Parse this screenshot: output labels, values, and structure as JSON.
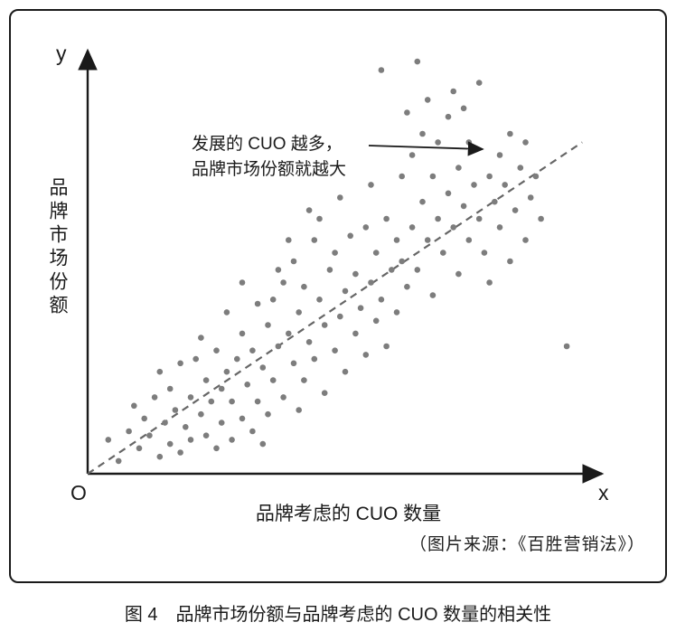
{
  "figure": {
    "y_axis_letter": "y",
    "x_axis_letter": "x",
    "origin_label": "O",
    "annotation_line1": "发展的 CUO 越多，",
    "annotation_line2": "品牌市场份额就越大",
    "source": "（图片来源：《百胜营销法》）",
    "caption": "图 4　品牌市场份额与品牌考虑的 CUO 数量的相关性",
    "dot_color": "#7d7d7d",
    "trend_color": "#666666",
    "axis_color": "#1a1a1a"
  },
  "chart_data": {
    "type": "scatter",
    "title": "",
    "xlabel": "品牌考虑的 CUO 数量",
    "ylabel": "品牌市场份额",
    "x_range": [
      0,
      100
    ],
    "y_range": [
      0,
      100
    ],
    "grid": false,
    "legend": "none",
    "annotation": "发展的 CUO 越多，品牌市场份额就越大",
    "trend_line": {
      "style": "dashed",
      "from": [
        0,
        0
      ],
      "to": [
        96,
        78
      ]
    },
    "points": [
      [
        4,
        8
      ],
      [
        6,
        3
      ],
      [
        8,
        10
      ],
      [
        9,
        16
      ],
      [
        10,
        6
      ],
      [
        11,
        13
      ],
      [
        12,
        9
      ],
      [
        13,
        18
      ],
      [
        14,
        4
      ],
      [
        14,
        24
      ],
      [
        15,
        12
      ],
      [
        16,
        20
      ],
      [
        16,
        7
      ],
      [
        17,
        15
      ],
      [
        18,
        5
      ],
      [
        18,
        26
      ],
      [
        19,
        11
      ],
      [
        20,
        18
      ],
      [
        20,
        8
      ],
      [
        21,
        27
      ],
      [
        22,
        14
      ],
      [
        22,
        32
      ],
      [
        23,
        9
      ],
      [
        23,
        22
      ],
      [
        24,
        17
      ],
      [
        25,
        6
      ],
      [
        25,
        29
      ],
      [
        26,
        12
      ],
      [
        26,
        20
      ],
      [
        27,
        24
      ],
      [
        27,
        38
      ],
      [
        28,
        8
      ],
      [
        28,
        17
      ],
      [
        29,
        27
      ],
      [
        30,
        13
      ],
      [
        30,
        33
      ],
      [
        30,
        45
      ],
      [
        31,
        21
      ],
      [
        32,
        10
      ],
      [
        32,
        29
      ],
      [
        33,
        17
      ],
      [
        33,
        40
      ],
      [
        34,
        25
      ],
      [
        34,
        7
      ],
      [
        35,
        35
      ],
      [
        35,
        14
      ],
      [
        36,
        22
      ],
      [
        36,
        41
      ],
      [
        37,
        30
      ],
      [
        37,
        48
      ],
      [
        38,
        18
      ],
      [
        38,
        45
      ],
      [
        39,
        33
      ],
      [
        39,
        55
      ],
      [
        40,
        26
      ],
      [
        40,
        50
      ],
      [
        41,
        15
      ],
      [
        41,
        38
      ],
      [
        42,
        22
      ],
      [
        42,
        44
      ],
      [
        43,
        31
      ],
      [
        43,
        62
      ],
      [
        44,
        27
      ],
      [
        44,
        55
      ],
      [
        45,
        41
      ],
      [
        45,
        60
      ],
      [
        46,
        19
      ],
      [
        46,
        35
      ],
      [
        47,
        48
      ],
      [
        48,
        29
      ],
      [
        48,
        52
      ],
      [
        49,
        37
      ],
      [
        49,
        65
      ],
      [
        50,
        24
      ],
      [
        50,
        43
      ],
      [
        51,
        56
      ],
      [
        52,
        33
      ],
      [
        52,
        47
      ],
      [
        53,
        39
      ],
      [
        54,
        28
      ],
      [
        54,
        58
      ],
      [
        55,
        45
      ],
      [
        55,
        68
      ],
      [
        56,
        36
      ],
      [
        56,
        52
      ],
      [
        57,
        41
      ],
      [
        57,
        95
      ],
      [
        58,
        30
      ],
      [
        58,
        60
      ],
      [
        59,
        48
      ],
      [
        60,
        38
      ],
      [
        60,
        55
      ],
      [
        61,
        50
      ],
      [
        61,
        70
      ],
      [
        62,
        44
      ],
      [
        62,
        85
      ],
      [
        63,
        58
      ],
      [
        63,
        75
      ],
      [
        64,
        48
      ],
      [
        64,
        97
      ],
      [
        65,
        64
      ],
      [
        65,
        80
      ],
      [
        66,
        55
      ],
      [
        66,
        88
      ],
      [
        67,
        70
      ],
      [
        67,
        42
      ],
      [
        68,
        60
      ],
      [
        68,
        78
      ],
      [
        69,
        52
      ],
      [
        70,
        66
      ],
      [
        70,
        84
      ],
      [
        71,
        58
      ],
      [
        71,
        90
      ],
      [
        72,
        72
      ],
      [
        72,
        47
      ],
      [
        73,
        63
      ],
      [
        73,
        86
      ],
      [
        74,
        78
      ],
      [
        74,
        55
      ],
      [
        75,
        68
      ],
      [
        76,
        60
      ],
      [
        76,
        92
      ],
      [
        77,
        52
      ],
      [
        78,
        70
      ],
      [
        78,
        45
      ],
      [
        79,
        64
      ],
      [
        80,
        75
      ],
      [
        80,
        58
      ],
      [
        81,
        68
      ],
      [
        82,
        50
      ],
      [
        82,
        80
      ],
      [
        83,
        62
      ],
      [
        84,
        72
      ],
      [
        85,
        55
      ],
      [
        85,
        78
      ],
      [
        86,
        65
      ],
      [
        87,
        70
      ],
      [
        88,
        60
      ],
      [
        93,
        30
      ]
    ]
  }
}
